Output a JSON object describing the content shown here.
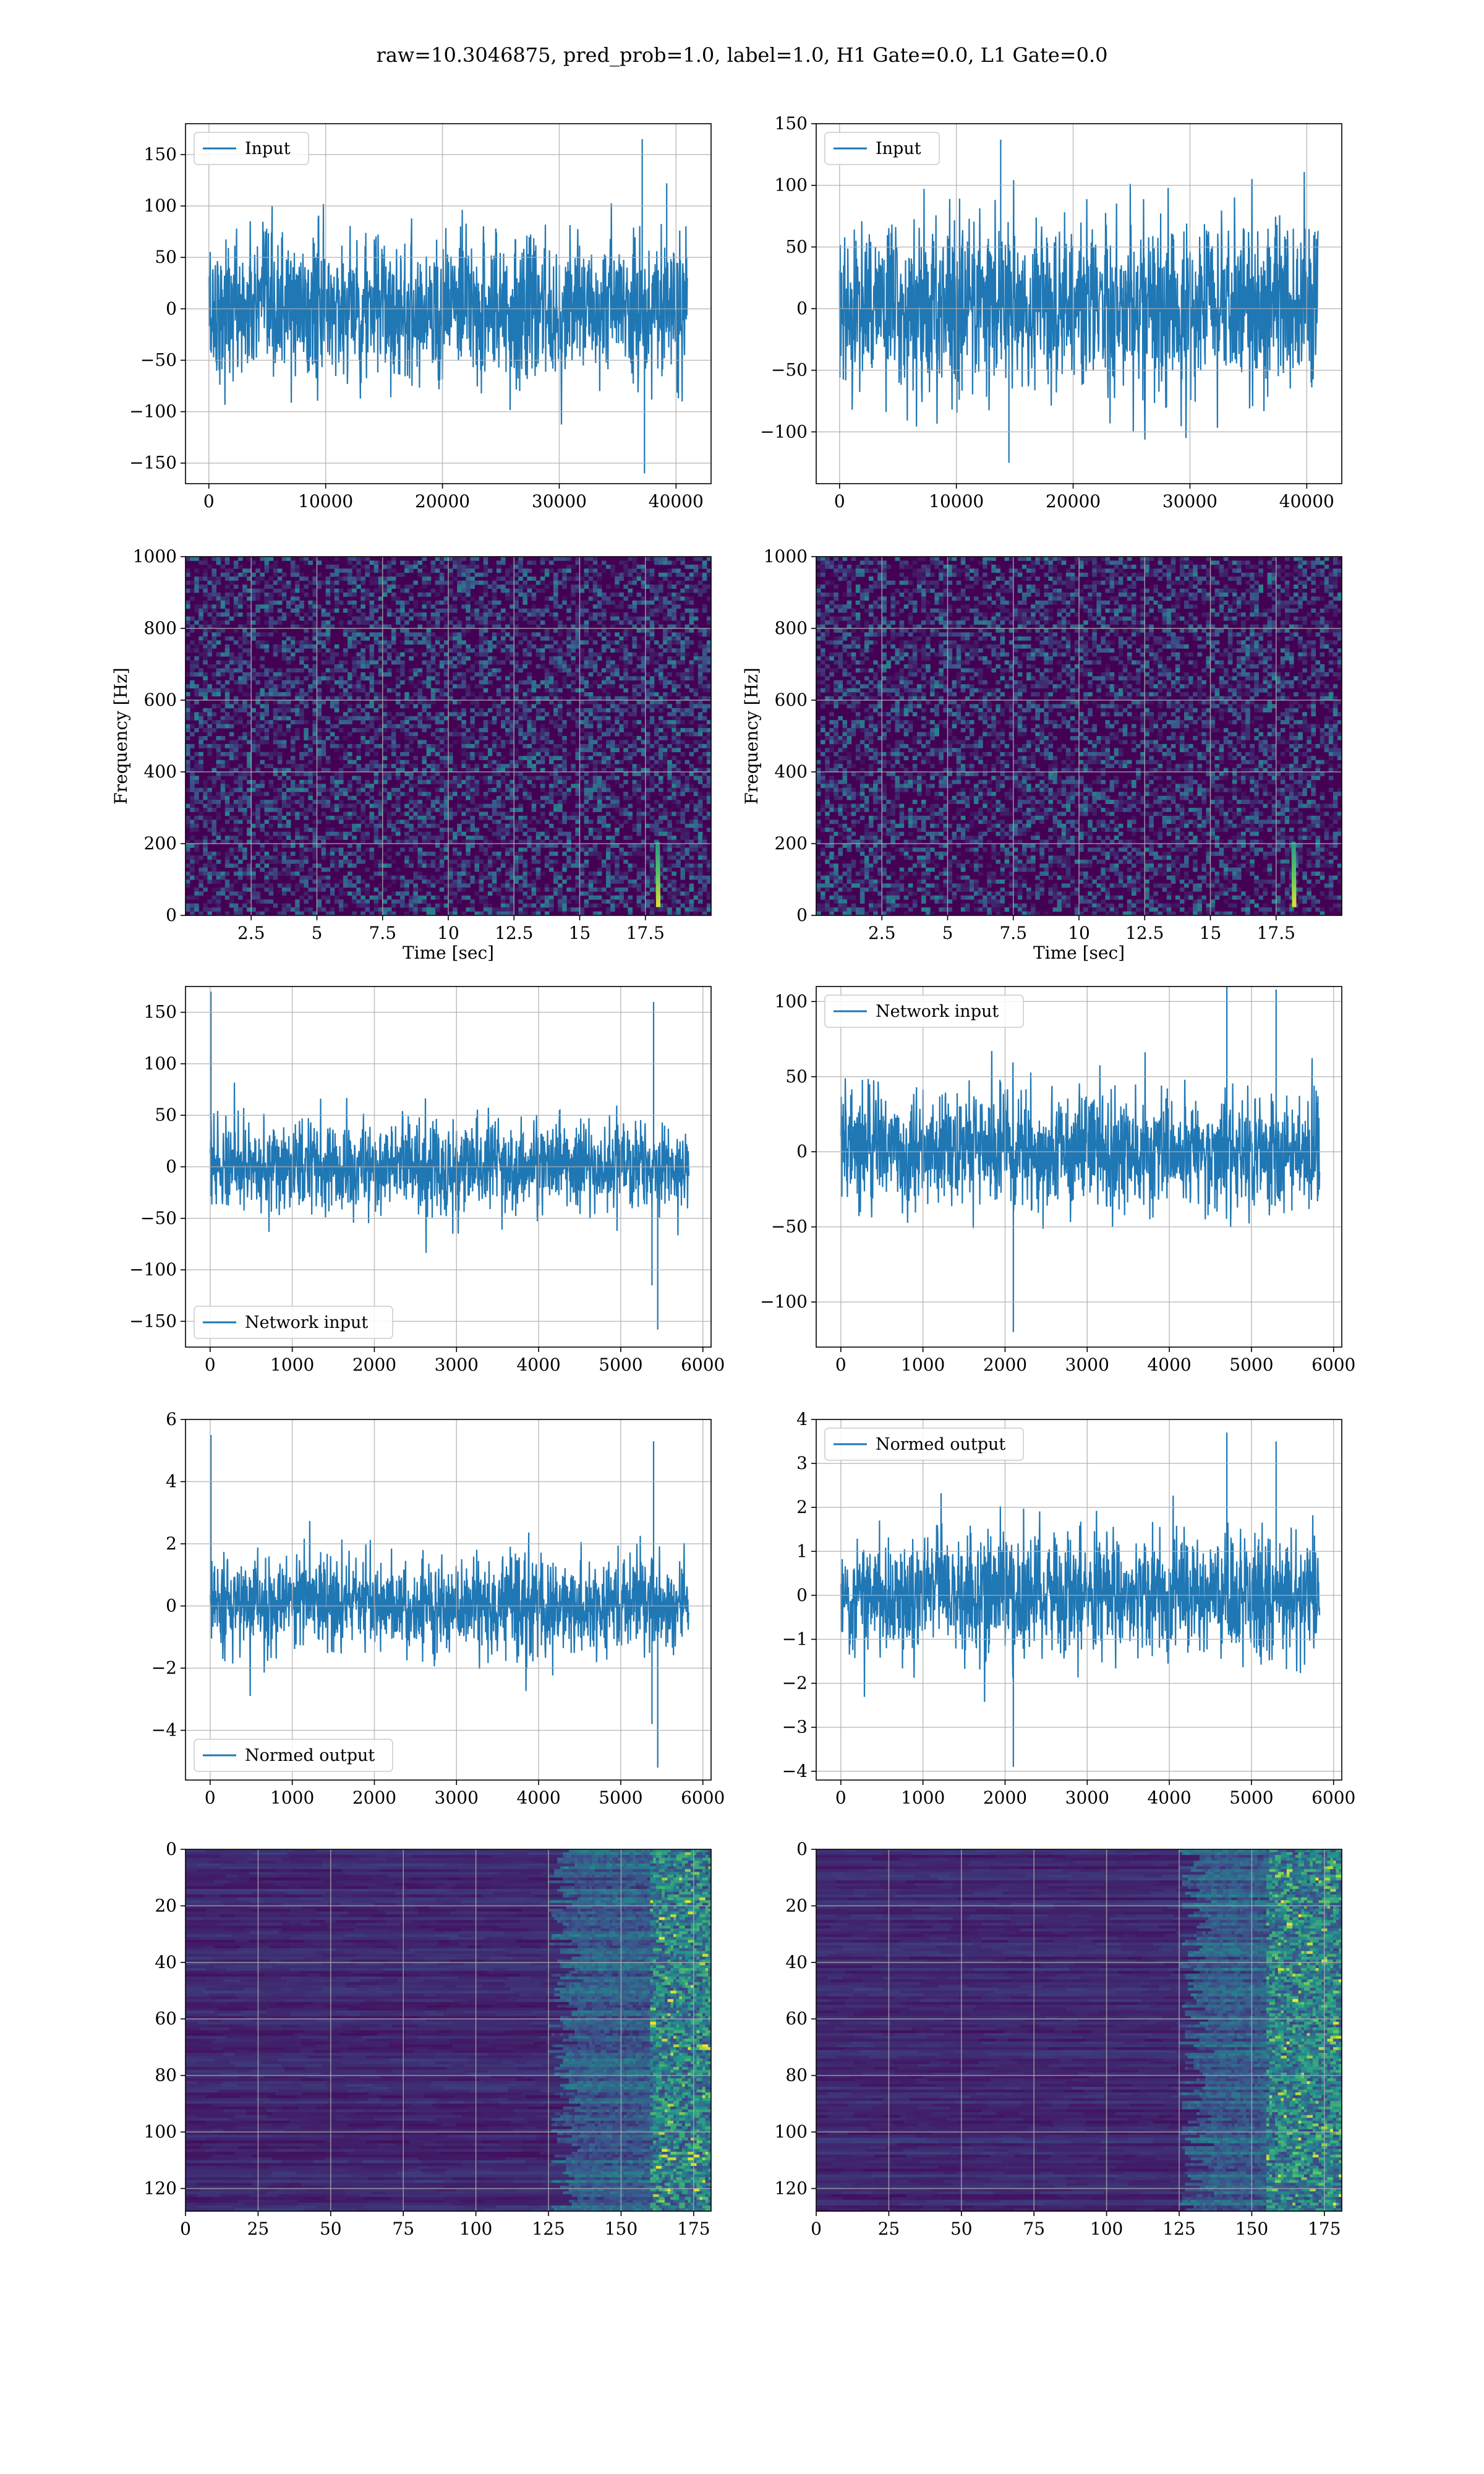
{
  "figure": {
    "suptitle": "raw=10.3046875, pred_prob=1.0, label=1.0, H1 Gate=0.0, L1 Gate=0.0"
  },
  "colors": {
    "series": "#1f77b4",
    "grid": "#b0b0b0",
    "viridis_dark": "#440154",
    "viridis_mid": "#21918c",
    "viridis_bright": "#fde725"
  },
  "chart_data": [
    {
      "id": "input_h1",
      "type": "line",
      "legend": [
        "Input"
      ],
      "legend_loc": "upper-left",
      "xlim": [
        -2000,
        43000
      ],
      "ylim": [
        -170,
        180
      ],
      "xticks": [
        0,
        10000,
        20000,
        30000,
        40000
      ],
      "yticks": [
        -150,
        -100,
        -50,
        0,
        50,
        100,
        150
      ],
      "grid": true,
      "x_range": [
        0,
        40960
      ],
      "band": [
        -65,
        65
      ],
      "peak_range": [
        -160,
        165
      ],
      "spikes": [
        {
          "x": 37100,
          "y": 165
        },
        {
          "x": 37300,
          "y": -160
        },
        {
          "x": 39200,
          "y": 122
        }
      ]
    },
    {
      "id": "input_l1",
      "type": "line",
      "legend": [
        "Input"
      ],
      "legend_loc": "upper-left",
      "xlim": [
        -2000,
        43000
      ],
      "ylim": [
        -142,
        150
      ],
      "xticks": [
        0,
        10000,
        20000,
        30000,
        40000
      ],
      "yticks": [
        -100,
        -50,
        0,
        50,
        100,
        150
      ],
      "grid": true,
      "x_range": [
        0,
        40960
      ],
      "band": [
        -60,
        65
      ],
      "peak_range": [
        -125,
        137
      ],
      "spikes": [
        {
          "x": 13800,
          "y": 137
        },
        {
          "x": 14500,
          "y": -125
        }
      ]
    },
    {
      "id": "spec_h1",
      "type": "heatmap",
      "xlabel": "Time [sec]",
      "ylabel": "Frequency [Hz]",
      "xlim": [
        0,
        20
      ],
      "ylim": [
        0,
        1000
      ],
      "xticks": [
        2.5,
        5.0,
        7.5,
        10.0,
        12.5,
        15.0,
        17.5
      ],
      "yticks": [
        0,
        200,
        400,
        600,
        800,
        1000
      ],
      "grid": true,
      "colormap": "viridis",
      "chirp": {
        "t": 18.0,
        "f_range": [
          30,
          200
        ]
      }
    },
    {
      "id": "spec_l1",
      "type": "heatmap",
      "xlabel": "Time [sec]",
      "ylabel": "Frequency [Hz]",
      "xlim": [
        0,
        20
      ],
      "ylim": [
        0,
        1000
      ],
      "xticks": [
        2.5,
        5.0,
        7.5,
        10.0,
        12.5,
        15.0,
        17.5
      ],
      "yticks": [
        0,
        200,
        400,
        600,
        800,
        1000
      ],
      "grid": true,
      "colormap": "viridis",
      "chirp": {
        "t": 18.2,
        "f_range": [
          30,
          200
        ]
      }
    },
    {
      "id": "net_h1",
      "type": "line",
      "legend": [
        "Network input"
      ],
      "legend_loc": "lower-left",
      "xlim": [
        -300,
        6100
      ],
      "ylim": [
        -175,
        175
      ],
      "xticks": [
        0,
        1000,
        2000,
        3000,
        4000,
        5000,
        6000
      ],
      "yticks": [
        -150,
        -100,
        -50,
        0,
        50,
        100,
        150
      ],
      "grid": true,
      "x_range": [
        0,
        5830
      ],
      "band": [
        -40,
        40
      ],
      "peak_range": [
        -158,
        170
      ],
      "spikes": [
        {
          "x": 10,
          "y": 170
        },
        {
          "x": 5400,
          "y": 160
        },
        {
          "x": 5450,
          "y": -158
        },
        {
          "x": 5380,
          "y": -115
        }
      ]
    },
    {
      "id": "net_l1",
      "type": "line",
      "legend": [
        "Network input"
      ],
      "legend_loc": "upper-left",
      "xlim": [
        -300,
        6100
      ],
      "ylim": [
        -130,
        110
      ],
      "xticks": [
        0,
        1000,
        2000,
        3000,
        4000,
        5000,
        6000
      ],
      "yticks": [
        -100,
        -50,
        0,
        50,
        100
      ],
      "grid": true,
      "x_range": [
        0,
        5830
      ],
      "band": [
        -35,
        35
      ],
      "peak_range": [
        -120,
        112
      ],
      "spikes": [
        {
          "x": 2100,
          "y": -120
        },
        {
          "x": 4700,
          "y": 112
        },
        {
          "x": 5300,
          "y": 108
        }
      ]
    },
    {
      "id": "norm_h1",
      "type": "line",
      "legend": [
        "Normed output"
      ],
      "legend_loc": "lower-left",
      "xlim": [
        -300,
        6100
      ],
      "ylim": [
        -5.6,
        6.0
      ],
      "xticks": [
        0,
        1000,
        2000,
        3000,
        4000,
        5000,
        6000
      ],
      "yticks": [
        -4,
        -2,
        0,
        2,
        4,
        6
      ],
      "grid": true,
      "x_range": [
        0,
        5830
      ],
      "band": [
        -1.4,
        1.4
      ],
      "peak_range": [
        -5.2,
        5.5
      ],
      "spikes": [
        {
          "x": 10,
          "y": 5.5
        },
        {
          "x": 5400,
          "y": 5.3
        },
        {
          "x": 5450,
          "y": -5.2
        },
        {
          "x": 5380,
          "y": -3.8
        }
      ]
    },
    {
      "id": "norm_l1",
      "type": "line",
      "legend": [
        "Normed output"
      ],
      "legend_loc": "upper-left",
      "xlim": [
        -300,
        6100
      ],
      "ylim": [
        -4.2,
        4.0
      ],
      "xticks": [
        0,
        1000,
        2000,
        3000,
        4000,
        5000,
        6000
      ],
      "yticks": [
        -4,
        -3,
        -2,
        -1,
        0,
        1,
        2,
        3,
        4
      ],
      "grid": true,
      "x_range": [
        0,
        5830
      ],
      "band": [
        -1.25,
        1.25
      ],
      "peak_range": [
        -3.9,
        3.7
      ],
      "spikes": [
        {
          "x": 2100,
          "y": -3.9
        },
        {
          "x": 4700,
          "y": 3.7
        },
        {
          "x": 5300,
          "y": 3.5
        }
      ]
    },
    {
      "id": "feat_h1",
      "type": "heatmap",
      "xlim": [
        0,
        181
      ],
      "ylim": [
        128,
        0
      ],
      "xticks": [
        0,
        25,
        50,
        75,
        100,
        125,
        150,
        175
      ],
      "yticks": [
        0,
        20,
        40,
        60,
        80,
        100,
        120
      ],
      "grid": true,
      "colormap": "viridis",
      "bright_cols": [
        160,
        178
      ]
    },
    {
      "id": "feat_l1",
      "type": "heatmap",
      "xlim": [
        0,
        181
      ],
      "ylim": [
        128,
        0
      ],
      "xticks": [
        0,
        25,
        50,
        75,
        100,
        125,
        150,
        175
      ],
      "yticks": [
        0,
        20,
        40,
        60,
        80,
        100,
        120
      ],
      "grid": true,
      "colormap": "viridis",
      "bright_cols": [
        155,
        175
      ]
    }
  ]
}
